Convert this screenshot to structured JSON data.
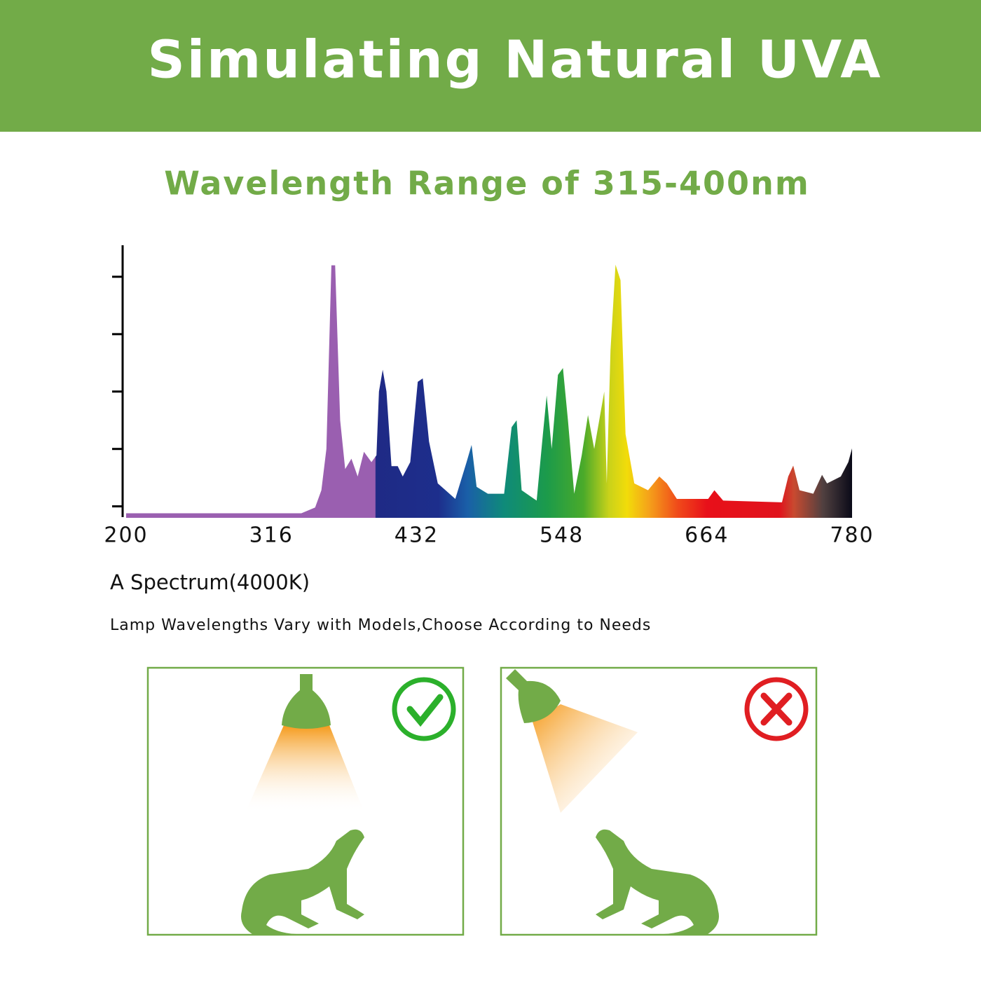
{
  "header": {
    "title": "Simulating Natural UVA"
  },
  "subtitle": "Wavelength Range of 315-400nm",
  "chart_data": {
    "type": "area",
    "x": [
      200,
      340,
      351,
      356,
      360,
      364,
      367,
      371,
      375,
      380,
      385,
      390,
      396,
      400,
      402,
      405,
      408,
      412,
      417,
      421,
      427,
      433,
      437,
      442,
      449,
      463,
      472,
      476,
      480,
      489,
      502,
      508,
      512,
      516,
      528,
      533,
      536,
      540,
      545,
      549,
      553,
      558,
      564,
      569,
      574,
      578,
      582,
      584,
      587,
      591,
      595,
      599,
      606,
      617,
      626,
      632,
      640,
      665,
      670,
      677,
      724,
      729,
      733,
      738,
      749,
      756,
      760,
      771,
      777,
      780
    ],
    "values": [
      -0.12,
      -0.12,
      -0.02,
      0.28,
      1.0,
      4.2,
      4.2,
      1.5,
      0.65,
      0.83,
      0.52,
      0.95,
      0.77,
      0.89,
      2.0,
      2.38,
      2.0,
      0.7,
      0.7,
      0.52,
      0.77,
      2.17,
      2.23,
      1.13,
      0.4,
      0.13,
      0.77,
      1.07,
      0.34,
      0.22,
      0.22,
      1.38,
      1.5,
      0.28,
      0.1,
      1.26,
      1.93,
      1.0,
      2.29,
      2.41,
      1.5,
      0.22,
      0.89,
      1.59,
      1.0,
      1.5,
      2.0,
      0.4,
      2.72,
      4.21,
      3.94,
      1.26,
      0.4,
      0.28,
      0.52,
      0.4,
      0.13,
      0.13,
      0.28,
      0.1,
      0.07,
      0.52,
      0.71,
      0.28,
      0.22,
      0.55,
      0.4,
      0.52,
      0.77,
      1.01
    ],
    "xlim": [
      200,
      780
    ],
    "ylim": [
      -0.2,
      4.5
    ],
    "xticks": [
      200,
      316,
      432,
      548,
      664,
      780
    ],
    "yticks": [
      0,
      1,
      2,
      3,
      4
    ]
  },
  "caption": "A Spectrum(4000K)",
  "note": "Lamp Wavelengths Vary with Models,Choose According to Needs"
}
